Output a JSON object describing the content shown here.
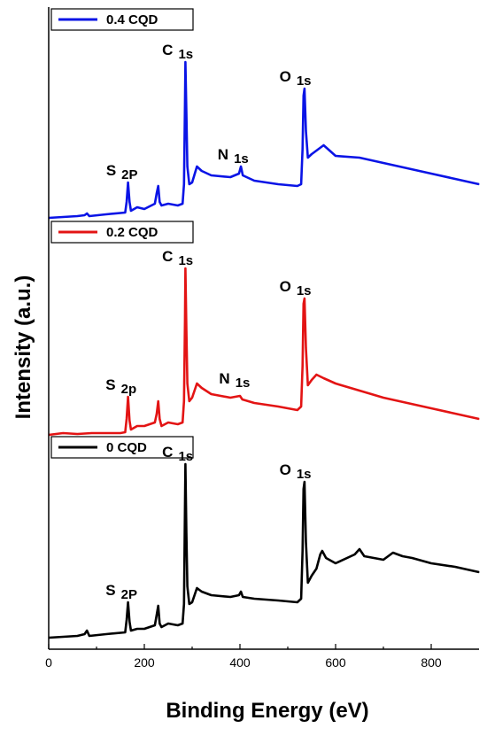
{
  "chart_data": {
    "type": "line",
    "xlabel": "Binding Energy (eV)",
    "ylabel": "Intensity (a.u.)",
    "xlim": [
      0,
      900
    ],
    "xticks": [
      "0",
      "200",
      "400",
      "600",
      "800"
    ],
    "xtick_values": [
      0,
      200,
      400,
      600,
      800
    ],
    "y_ticks_shown": false,
    "grid": false,
    "legend_placement": "top-left of each panel",
    "series": [
      {
        "name": "0.4 CQD",
        "color": "#0a14e6",
        "panel": 0,
        "x": [
          0,
          30,
          60,
          75,
          80,
          85,
          120,
          160,
          163,
          166,
          169,
          172,
          185,
          200,
          222,
          226,
          229,
          232,
          236,
          250,
          270,
          280,
          283,
          285,
          286,
          288,
          290,
          294,
          300,
          310,
          320,
          340,
          380,
          398,
          402,
          406,
          430,
          480,
          520,
          528,
          531,
          533,
          535,
          538,
          542,
          550,
          565,
          575,
          600,
          650,
          700,
          750,
          800,
          850,
          900
        ],
        "y": [
          2,
          3,
          4,
          5,
          7,
          4,
          6,
          8,
          20,
          42,
          20,
          10,
          14,
          12,
          18,
          30,
          38,
          20,
          16,
          18,
          16,
          18,
          40,
          130,
          178,
          120,
          60,
          40,
          42,
          60,
          55,
          50,
          48,
          52,
          60,
          50,
          44,
          40,
          38,
          40,
          80,
          140,
          148,
          100,
          70,
          74,
          80,
          84,
          72,
          70,
          64,
          58,
          52,
          46,
          40
        ],
        "labels": [
          {
            "peak": "S",
            "sub": "2P",
            "x": 167,
            "y": 42
          },
          {
            "peak": "C",
            "sub": "1s",
            "x": 286,
            "y": 178
          },
          {
            "peak": "N",
            "sub": "1s",
            "x": 402,
            "y": 60
          },
          {
            "peak": "O",
            "sub": "1s",
            "x": 533,
            "y": 148
          }
        ]
      },
      {
        "name": "0.2 CQD",
        "color": "#e31414",
        "panel": 1,
        "x": [
          0,
          30,
          60,
          90,
          120,
          150,
          160,
          163,
          166,
          169,
          172,
          185,
          200,
          222,
          226,
          229,
          232,
          236,
          250,
          270,
          280,
          283,
          285,
          286,
          288,
          290,
          294,
          300,
          310,
          320,
          340,
          380,
          400,
          405,
          430,
          480,
          520,
          528,
          531,
          533,
          535,
          538,
          542,
          550,
          560,
          575,
          600,
          650,
          700,
          750,
          800,
          850,
          900
        ],
        "y": [
          2,
          4,
          3,
          4,
          4,
          4,
          5,
          20,
          45,
          18,
          8,
          12,
          12,
          16,
          26,
          40,
          20,
          12,
          16,
          14,
          16,
          40,
          130,
          190,
          120,
          60,
          40,
          44,
          60,
          55,
          48,
          44,
          46,
          42,
          38,
          34,
          30,
          34,
          80,
          150,
          156,
          100,
          58,
          64,
          70,
          66,
          60,
          52,
          44,
          38,
          32,
          26,
          20
        ],
        "labels": [
          {
            "peak": "S",
            "sub": "2p",
            "x": 166,
            "y": 45
          },
          {
            "peak": "C",
            "sub": "1s",
            "x": 286,
            "y": 190
          },
          {
            "peak": "N",
            "sub": "1s",
            "x": 405,
            "y": 52
          },
          {
            "peak": "O",
            "sub": "1s",
            "x": 533,
            "y": 156
          }
        ]
      },
      {
        "name": "0 CQD",
        "color": "#000000",
        "panel": 2,
        "x": [
          0,
          30,
          60,
          75,
          80,
          85,
          120,
          160,
          163,
          166,
          169,
          172,
          185,
          200,
          222,
          226,
          229,
          232,
          236,
          250,
          270,
          280,
          283,
          285,
          286,
          288,
          290,
          294,
          300,
          310,
          320,
          340,
          380,
          398,
          402,
          406,
          430,
          480,
          520,
          528,
          531,
          533,
          535,
          538,
          542,
          550,
          560,
          568,
          572,
          580,
          600,
          640,
          650,
          660,
          700,
          720,
          740,
          760,
          800,
          850,
          900
        ],
        "y": [
          2,
          3,
          4,
          6,
          10,
          4,
          6,
          8,
          22,
          42,
          20,
          10,
          12,
          12,
          16,
          28,
          38,
          18,
          14,
          18,
          16,
          18,
          40,
          150,
          198,
          120,
          60,
          40,
          42,
          58,
          54,
          50,
          48,
          50,
          54,
          48,
          46,
          44,
          42,
          46,
          100,
          170,
          178,
          110,
          64,
          72,
          80,
          96,
          100,
          92,
          86,
          96,
          102,
          94,
          90,
          98,
          94,
          92,
          86,
          82,
          76
        ],
        "labels": [
          {
            "peak": "S",
            "sub": "2P",
            "x": 166,
            "y": 42
          },
          {
            "peak": "C",
            "sub": "1s",
            "x": 286,
            "y": 198
          },
          {
            "peak": "O",
            "sub": "1s",
            "x": 533,
            "y": 178
          }
        ]
      }
    ]
  }
}
